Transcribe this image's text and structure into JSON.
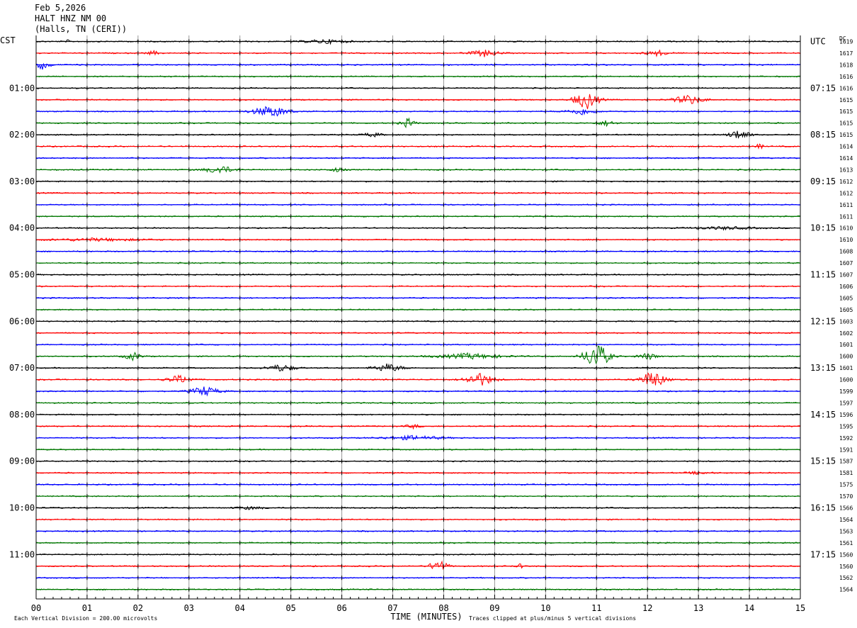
{
  "header": {
    "date": "Feb 5,2026",
    "station": "HALT HNZ NM 00",
    "location": "(Halls, TN (CERI))"
  },
  "chart_data": {
    "type": "line",
    "left_timezone": "CST",
    "right_timezone": "UTC",
    "dc_header": "DC",
    "xlabel": "TIME (MINUTES)",
    "xlim": [
      0,
      15
    ],
    "x_ticks": [
      "00",
      "01",
      "02",
      "03",
      "04",
      "05",
      "06",
      "07",
      "08",
      "09",
      "10",
      "11",
      "12",
      "13",
      "14",
      "15"
    ],
    "line_minutes": 15,
    "trace_colors": [
      "#000000",
      "#ff0000",
      "#0000ff",
      "#007700"
    ],
    "left_hour_labels": [
      {
        "row": 4,
        "label": "01:00"
      },
      {
        "row": 8,
        "label": "02:00"
      },
      {
        "row": 12,
        "label": "03:00"
      },
      {
        "row": 16,
        "label": "04:00"
      },
      {
        "row": 20,
        "label": "05:00"
      },
      {
        "row": 24,
        "label": "06:00"
      },
      {
        "row": 28,
        "label": "07:00"
      },
      {
        "row": 32,
        "label": "08:00"
      },
      {
        "row": 36,
        "label": "09:00"
      },
      {
        "row": 40,
        "label": "10:00"
      },
      {
        "row": 44,
        "label": "11:00"
      }
    ],
    "right_hour_labels": [
      {
        "row": 0,
        "label": "UTC"
      },
      {
        "row": 4,
        "label": "07:15"
      },
      {
        "row": 8,
        "label": "08:15"
      },
      {
        "row": 12,
        "label": "09:15"
      },
      {
        "row": 16,
        "label": "10:15"
      },
      {
        "row": 20,
        "label": "11:15"
      },
      {
        "row": 24,
        "label": "12:15"
      },
      {
        "row": 28,
        "label": "13:15"
      },
      {
        "row": 32,
        "label": "14:15"
      },
      {
        "row": 36,
        "label": "15:15"
      },
      {
        "row": 40,
        "label": "16:15"
      },
      {
        "row": 44,
        "label": "17:15"
      }
    ],
    "dc_offsets": [
      1619,
      1617,
      1618,
      1616,
      1616,
      1615,
      1615,
      1615,
      1615,
      1614,
      1614,
      1613,
      1612,
      1612,
      1611,
      1611,
      1610,
      1610,
      1608,
      1607,
      1607,
      1606,
      1605,
      1605,
      1603,
      1602,
      1601,
      1600,
      1601,
      1600,
      1599,
      1597,
      1596,
      1595,
      1592,
      1591,
      1587,
      1581,
      1575,
      1570,
      1566,
      1564,
      1563,
      1561,
      1560,
      1560,
      1562,
      1564
    ],
    "events": [
      {
        "row": 0,
        "minute": 0.62,
        "amp": 3,
        "dur": 0.05
      },
      {
        "row": 0,
        "minute": 5.7,
        "amp": 3,
        "dur": 0.9
      },
      {
        "row": 1,
        "minute": 2.3,
        "amp": 3,
        "dur": 0.25
      },
      {
        "row": 1,
        "minute": 8.8,
        "amp": 5,
        "dur": 0.6
      },
      {
        "row": 1,
        "minute": 12.2,
        "amp": 4,
        "dur": 0.5
      },
      {
        "row": 2,
        "minute": 0.1,
        "amp": 7,
        "dur": 0.35
      },
      {
        "row": 5,
        "minute": 10.8,
        "amp": 14,
        "dur": 0.5
      },
      {
        "row": 5,
        "minute": 12.8,
        "amp": 7,
        "dur": 0.6
      },
      {
        "row": 6,
        "minute": 4.6,
        "amp": 9,
        "dur": 0.7
      },
      {
        "row": 6,
        "minute": 10.7,
        "amp": 5,
        "dur": 0.6
      },
      {
        "row": 7,
        "minute": 7.3,
        "amp": 7,
        "dur": 0.3
      },
      {
        "row": 7,
        "minute": 11.2,
        "amp": 4,
        "dur": 0.4
      },
      {
        "row": 8,
        "minute": 6.6,
        "amp": 3,
        "dur": 0.4
      },
      {
        "row": 8,
        "minute": 13.8,
        "amp": 8,
        "dur": 0.4
      },
      {
        "row": 9,
        "minute": 14.2,
        "amp": 4,
        "dur": 0.15
      },
      {
        "row": 11,
        "minute": 3.6,
        "amp": 6,
        "dur": 0.6
      },
      {
        "row": 11,
        "minute": 5.9,
        "amp": 3,
        "dur": 0.3
      },
      {
        "row": 16,
        "minute": 13.5,
        "amp": 2,
        "dur": 1.4
      },
      {
        "row": 17,
        "minute": 1.2,
        "amp": 2,
        "dur": 2.0
      },
      {
        "row": 27,
        "minute": 1.9,
        "amp": 6,
        "dur": 0.35
      },
      {
        "row": 27,
        "minute": 8.5,
        "amp": 4,
        "dur": 1.4
      },
      {
        "row": 27,
        "minute": 11.0,
        "amp": 22,
        "dur": 0.5
      },
      {
        "row": 27,
        "minute": 12.0,
        "amp": 5,
        "dur": 0.4
      },
      {
        "row": 28,
        "minute": 4.8,
        "amp": 5,
        "dur": 0.6
      },
      {
        "row": 28,
        "minute": 6.9,
        "amp": 6,
        "dur": 0.6
      },
      {
        "row": 29,
        "minute": 2.8,
        "amp": 6,
        "dur": 0.5
      },
      {
        "row": 29,
        "minute": 8.7,
        "amp": 10,
        "dur": 0.6
      },
      {
        "row": 29,
        "minute": 12.1,
        "amp": 14,
        "dur": 0.5
      },
      {
        "row": 30,
        "minute": 3.3,
        "amp": 7,
        "dur": 0.6
      },
      {
        "row": 33,
        "minute": 7.4,
        "amp": 3,
        "dur": 0.3
      },
      {
        "row": 34,
        "minute": 7.4,
        "amp": 3,
        "dur": 1.2
      },
      {
        "row": 37,
        "minute": 13.0,
        "amp": 2,
        "dur": 0.5
      },
      {
        "row": 40,
        "minute": 4.2,
        "amp": 2,
        "dur": 0.6
      },
      {
        "row": 45,
        "minute": 7.9,
        "amp": 10,
        "dur": 0.35
      },
      {
        "row": 45,
        "minute": 9.5,
        "amp": 3,
        "dur": 0.2
      }
    ]
  },
  "footer": {
    "scale_note": "Each Vertical Division =  200.00 microvolts",
    "clip_note": "Traces clipped at plus/minus 5 vertical divisions"
  }
}
